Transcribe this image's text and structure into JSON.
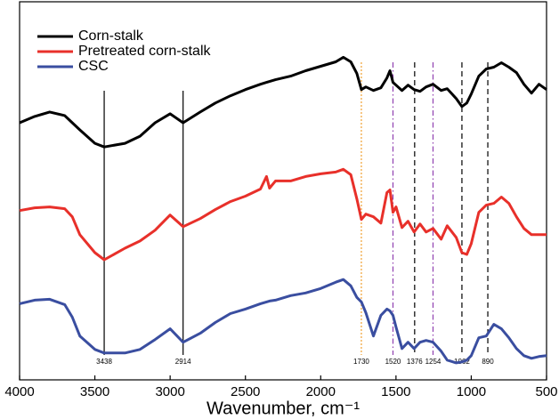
{
  "chart_data": {
    "type": "line",
    "xlabel": "Wavenumber, cm⁻¹",
    "xlim": [
      4000,
      500
    ],
    "xticks": [
      4000,
      3500,
      3000,
      2500,
      2000,
      1500,
      1000,
      500
    ],
    "ylim": [
      0,
      422
    ],
    "legend": "upper left",
    "x": [
      4000,
      3900,
      3800,
      3700,
      3650,
      3600,
      3500,
      3438,
      3300,
      3200,
      3100,
      3000,
      2914,
      2800,
      2700,
      2600,
      2500,
      2400,
      2360,
      2340,
      2300,
      2200,
      2100,
      2000,
      1900,
      1850,
      1800,
      1760,
      1730,
      1700,
      1650,
      1600,
      1560,
      1540,
      1520,
      1500,
      1460,
      1420,
      1380,
      1340,
      1300,
      1254,
      1200,
      1160,
      1100,
      1062,
      1030,
      1000,
      950,
      900,
      850,
      800,
      750,
      700,
      650,
      600,
      550,
      500
    ],
    "series": [
      {
        "name": "Corn-stalk",
        "color": "#000000",
        "values": [
          287,
          294,
          299,
          295,
          287,
          279,
          264,
          260,
          264,
          272,
          287,
          297,
          287,
          299,
          309,
          317,
          324,
          330,
          332,
          333,
          335,
          339,
          345,
          350,
          355,
          360,
          355,
          342,
          324,
          327,
          323,
          326,
          337,
          345,
          332,
          329,
          323,
          329,
          324,
          322,
          327,
          330,
          323,
          325,
          314,
          305,
          309,
          319,
          339,
          347,
          349,
          354,
          349,
          343,
          330,
          320,
          330,
          324
        ]
      },
      {
        "name": "Pretreated corn-stalk",
        "color": "#e8302a",
        "values": [
          189,
          192,
          193,
          191,
          182,
          162,
          142,
          134,
          147,
          155,
          167,
          184,
          171,
          180,
          190,
          199,
          205,
          213,
          227,
          214,
          222,
          222,
          227,
          230,
          232,
          235,
          229,
          202,
          179,
          185,
          182,
          175,
          209,
          212,
          187,
          193,
          170,
          177,
          165,
          174,
          165,
          169,
          157,
          172,
          159,
          142,
          140,
          152,
          187,
          195,
          197,
          204,
          197,
          182,
          169,
          162,
          162,
          162
        ]
      },
      {
        "name": "CSC",
        "color": "#3a4ea0",
        "values": [
          85,
          89,
          90,
          84,
          70,
          49,
          34,
          30,
          30,
          34,
          45,
          57,
          42,
          52,
          64,
          74,
          79,
          85,
          87,
          88,
          89,
          94,
          97,
          102,
          109,
          112,
          105,
          92,
          87,
          75,
          49,
          72,
          79,
          77,
          72,
          59,
          35,
          42,
          35,
          42,
          44,
          42,
          32,
          22,
          19,
          20,
          22,
          27,
          47,
          49,
          62,
          57,
          47,
          35,
          27,
          24,
          26,
          27
        ]
      }
    ],
    "annotations": [
      {
        "x": 3438,
        "color": "#000000",
        "dash": "solid"
      },
      {
        "x": 2914,
        "color": "#000000",
        "dash": "solid"
      },
      {
        "x": 1730,
        "color": "#f0a030",
        "dash": "dotted"
      },
      {
        "x": 1520,
        "color": "#9040b0",
        "dash": "dashdot"
      },
      {
        "x": 1376,
        "color": "#000000",
        "dash": "dashed"
      },
      {
        "x": 1254,
        "color": "#9040b0",
        "dash": "dashdot"
      },
      {
        "x": 1062,
        "color": "#000000",
        "dash": "dashed"
      },
      {
        "x": 890,
        "color": "#000000",
        "dash": "dashed"
      }
    ]
  }
}
